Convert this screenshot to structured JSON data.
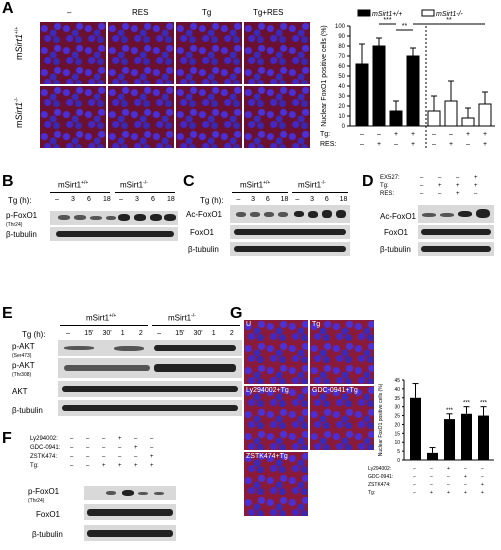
{
  "panels": {
    "A": "A",
    "B": "B",
    "C": "C",
    "D": "D",
    "E": "E",
    "F": "F",
    "G": "G"
  },
  "a": {
    "cols": [
      "–",
      "RES",
      "Tg",
      "Tg+RES"
    ],
    "row1_prefix": "m",
    "row1_gene": "Sirt1",
    "row1_sup": "+/+",
    "row2_prefix": "m",
    "row2_gene": "Sirt1",
    "row2_sup": "-/-"
  },
  "b": {
    "geno1": "mSirt1",
    "sup1": "+/+",
    "geno2": "mSirt1",
    "sup2": "-/-",
    "tg": "Tg (h):",
    "times": [
      "–",
      "3",
      "6",
      "18",
      "–",
      "3",
      "6",
      "18"
    ],
    "row1": "p-FoxO1",
    "row1_sub": "(Thr24)",
    "row2": "β-tubulin"
  },
  "c": {
    "geno1": "mSirt1",
    "sup1": "+/+",
    "geno2": "mSirt1",
    "sup2": "-/-",
    "tg": "Tg (h):",
    "times": [
      "–",
      "3",
      "6",
      "18",
      "–",
      "3",
      "6",
      "18"
    ],
    "row1": "Ac-FoxO1",
    "row2": "FoxO1",
    "row3": "β-tubulin"
  },
  "d": {
    "rows": [
      "EX527:",
      "Tg:",
      "RES:"
    ],
    "vals": [
      [
        "–",
        "–",
        "–",
        "+"
      ],
      [
        "–",
        "+",
        "+",
        "+"
      ],
      [
        "–",
        "–",
        "+",
        "–"
      ]
    ],
    "row1": "Ac-FoxO1",
    "row2": "FoxO1",
    "row3": "β-tubulin"
  },
  "e": {
    "geno1": "mSirt1",
    "sup1": "+/+",
    "geno2": "mSirt1",
    "sup2": "-/-",
    "tg": "Tg (h):",
    "times": [
      "–",
      "15'",
      "30'",
      "1",
      "2",
      "–",
      "15'",
      "30'",
      "1",
      "2"
    ],
    "row1": "p-AKT",
    "row1_sub": "(Ser473)",
    "row2": "p-AKT",
    "row2_sub": "(Thr308)",
    "row3": "AKT",
    "row4": "β-tubulin"
  },
  "f": {
    "rows": [
      "Ly294002:",
      "GDC-0941:",
      "ZSTK474:",
      "Tg:"
    ],
    "vals": [
      [
        "–",
        "–",
        "–",
        "+",
        "–",
        "–"
      ],
      [
        "–",
        "–",
        "–",
        "–",
        "+",
        "–"
      ],
      [
        "–",
        "–",
        "–",
        "–",
        "–",
        "+"
      ],
      [
        "–",
        "–",
        "+",
        "+",
        "+",
        "+"
      ]
    ],
    "row1": "p-FoxO1",
    "row1_sub": "(Thr24)",
    "row2": "FoxO1",
    "row3": "β-tubulin"
  },
  "g": {
    "labels": [
      "U",
      "Tg",
      "Ly294002+Tg",
      "GDC-0941+Tg",
      "ZSTK474+Tg"
    ],
    "treat_rows": [
      "Ly294002:",
      "GDC-0941:",
      "ZSTK474:",
      "Tg:"
    ]
  },
  "chart_data": [
    {
      "type": "bar",
      "ylabel": "Nuclear FoxO1 positive cells (%)",
      "ylim": [
        0,
        100
      ],
      "yticks": [
        0,
        10,
        20,
        30,
        40,
        50,
        60,
        70,
        80,
        90,
        100
      ],
      "legend": [
        {
          "label": "mSirt1+/+",
          "fill": "#000000"
        },
        {
          "label": "mSirt1-/-",
          "fill": "#ffffff"
        }
      ],
      "legend_placement": "top",
      "row_labels": [
        "Tg:",
        "RES:"
      ],
      "tg": [
        "–",
        "–",
        "+",
        "+",
        "–",
        "–",
        "+",
        "+"
      ],
      "res": [
        "–",
        "+",
        "–",
        "+",
        "–",
        "+",
        "–",
        "+"
      ],
      "series": [
        {
          "name": "mSirt1+/+",
          "values": [
            62,
            80,
            15,
            70
          ],
          "errors": [
            20,
            8,
            10,
            8
          ]
        },
        {
          "name": "mSirt1-/-",
          "values": [
            15,
            25,
            8,
            22
          ],
          "errors": [
            15,
            20,
            10,
            12
          ]
        }
      ],
      "significance": [
        "***",
        "**",
        "**"
      ]
    },
    {
      "type": "bar",
      "ylabel": "Nuclear FoxO1 positive cells (%)",
      "ylim": [
        0,
        45
      ],
      "yticks": [
        0,
        5,
        10,
        15,
        20,
        25,
        30,
        35,
        40,
        45
      ],
      "treatments": {
        "Ly294002:": [
          "–",
          "–",
          "+",
          "–",
          "–"
        ],
        "GDC-0941:": [
          "–",
          "–",
          "–",
          "+",
          "–"
        ],
        "ZSTK474:": [
          "–",
          "–",
          "–",
          "–",
          "+"
        ],
        "Tg:": [
          "–",
          "+",
          "+",
          "+",
          "+"
        ]
      },
      "values": [
        35,
        4,
        23,
        26,
        25
      ],
      "errors": [
        8,
        3,
        3,
        4,
        5
      ],
      "significance": [
        "",
        "",
        "***",
        "***",
        "***"
      ]
    }
  ]
}
